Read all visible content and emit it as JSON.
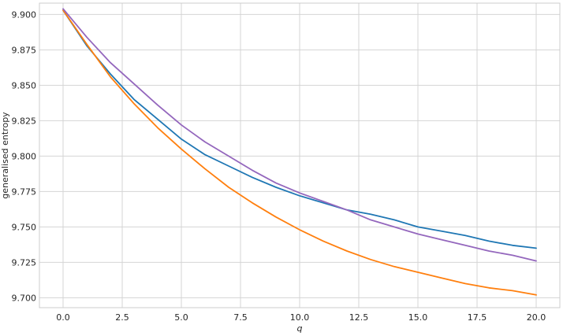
{
  "chart_data": {
    "type": "line",
    "title": "",
    "xlabel": "q",
    "ylabel": "generalised entropy",
    "xlim": [
      -1.0,
      21.0
    ],
    "ylim": [
      9.693,
      9.908
    ],
    "grid": true,
    "xticks": [
      0.0,
      2.5,
      5.0,
      7.5,
      10.0,
      12.5,
      15.0,
      17.5,
      20.0
    ],
    "xtick_labels": [
      "0.0",
      "2.5",
      "5.0",
      "7.5",
      "10.0",
      "12.5",
      "15.0",
      "17.5",
      "20.0"
    ],
    "yticks": [
      9.7,
      9.725,
      9.75,
      9.775,
      9.8,
      9.825,
      9.85,
      9.875,
      9.9
    ],
    "ytick_labels": [
      "9.700",
      "9.725",
      "9.750",
      "9.775",
      "9.800",
      "9.825",
      "9.850",
      "9.875",
      "9.900"
    ],
    "x": [
      0,
      1,
      2,
      3,
      4,
      5,
      6,
      7,
      8,
      9,
      10,
      11,
      12,
      13,
      14,
      15,
      16,
      17,
      18,
      19,
      20
    ],
    "series": [
      {
        "color": "#1f77b4",
        "values": [
          9.903,
          9.878,
          9.858,
          9.84,
          9.826,
          9.812,
          9.801,
          9.793,
          9.785,
          9.778,
          9.772,
          9.767,
          9.762,
          9.759,
          9.755,
          9.75,
          9.747,
          9.744,
          9.74,
          9.737,
          9.735
        ]
      },
      {
        "color": "#ff7f0e",
        "values": [
          9.903,
          9.879,
          9.856,
          9.837,
          9.82,
          9.805,
          9.791,
          9.778,
          9.767,
          9.757,
          9.748,
          9.74,
          9.733,
          9.727,
          9.722,
          9.718,
          9.714,
          9.71,
          9.707,
          9.705,
          9.702
        ]
      },
      {
        "color": "#9467bd",
        "values": [
          9.904,
          9.884,
          9.866,
          9.851,
          9.836,
          9.822,
          9.81,
          9.8,
          9.79,
          9.781,
          9.774,
          9.768,
          9.762,
          9.755,
          9.75,
          9.745,
          9.741,
          9.737,
          9.733,
          9.73,
          9.726
        ]
      }
    ]
  }
}
